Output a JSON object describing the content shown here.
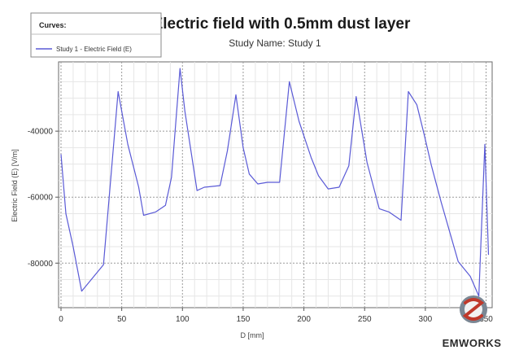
{
  "chart_data": {
    "type": "line",
    "title": "Electric field with 0.5mm dust layer",
    "subtitle": "Study Name: Study 1",
    "xlabel": "D [mm]",
    "ylabel": "Electric Field (E) [V/m]",
    "xlim": [
      -2,
      355
    ],
    "ylim": [
      -93500,
      -19000
    ],
    "xticks": [
      0,
      50,
      100,
      150,
      200,
      250,
      300,
      350
    ],
    "yticks": [
      -40000,
      -60000,
      -80000
    ],
    "grid": true,
    "legend": {
      "title": "Curves:",
      "position": "top-left"
    },
    "series": [
      {
        "name": "Study 1 - Electric Field (E)",
        "color": "#5a5ad6",
        "x": [
          0,
          4,
          10,
          17,
          35,
          47,
          55,
          64,
          68,
          78,
          86,
          91,
          98,
          102,
          112,
          118,
          131,
          137,
          144,
          150,
          155,
          162,
          170,
          180,
          188,
          196,
          206,
          212,
          220,
          229,
          237,
          243,
          252,
          262,
          270,
          280,
          286,
          293,
          299,
          305,
          313,
          327,
          337,
          344,
          349,
          352
        ],
        "y": [
          -47000,
          -65000,
          -75000,
          -88500,
          -80500,
          -28000,
          -44000,
          -57000,
          -65500,
          -64500,
          -62500,
          -54000,
          -21000,
          -34000,
          -58000,
          -57000,
          -56500,
          -46000,
          -29000,
          -45000,
          -53000,
          -56000,
          -55500,
          -55500,
          -25000,
          -37000,
          -48000,
          -53500,
          -57500,
          -57000,
          -50500,
          -29500,
          -49500,
          -63500,
          -64500,
          -67000,
          -28000,
          -32000,
          -41000,
          -50500,
          -61500,
          -79500,
          -84000,
          -90000,
          -44000,
          -77500
        ]
      }
    ]
  },
  "logo": {
    "text": "EMWORKS"
  }
}
